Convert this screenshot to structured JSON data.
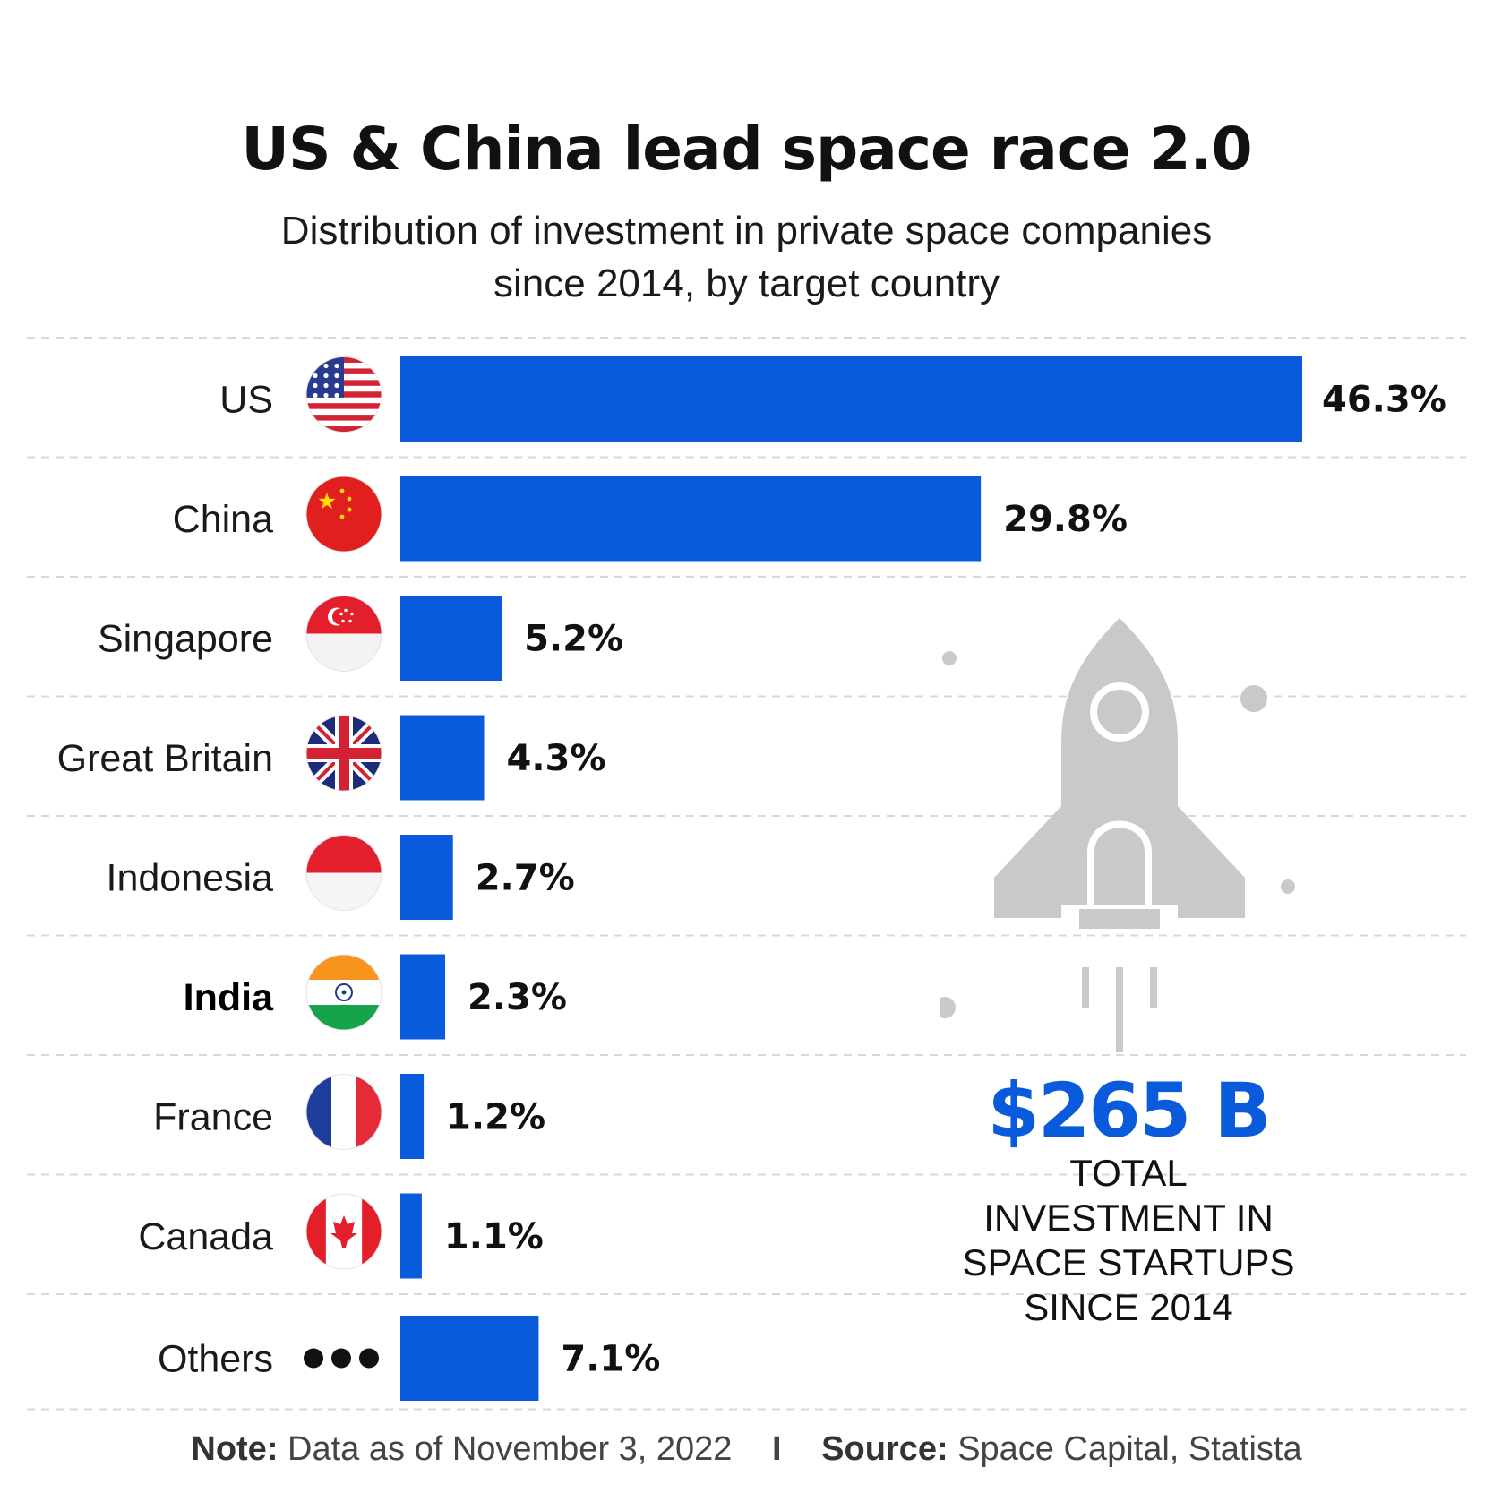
{
  "title": "US & China lead space race 2.0",
  "subtitle_line1": "Distribution of investment in private space companies",
  "subtitle_line2": "since 2014, by target country",
  "total": {
    "amount": "$265 B",
    "caption": "TOTAL INVESTMENT IN SPACE STARTUPS SINCE 2014"
  },
  "footer": {
    "note_label": "Note:",
    "note_text": "Data as of November 3, 2022",
    "separator": "I",
    "source_label": "Source:",
    "source_text": "Space Capital, Statista"
  },
  "colors": {
    "bar": "#0a5bdc",
    "accent": "#0a5bdc",
    "rocket": "#c9c9cc"
  },
  "chart_data": {
    "type": "bar",
    "orientation": "horizontal",
    "categories": [
      "US",
      "China",
      "Singapore",
      "Great Britain",
      "Indonesia",
      "India",
      "France",
      "Canada",
      "Others"
    ],
    "values": [
      46.3,
      29.8,
      5.2,
      4.3,
      2.7,
      2.3,
      1.2,
      1.1,
      7.1
    ],
    "value_labels": [
      "46.3%",
      "29.8%",
      "5.2%",
      "4.3%",
      "2.7%",
      "2.3%",
      "1.2%",
      "1.1%",
      "7.1%"
    ],
    "icons": [
      "us-flag-icon",
      "china-flag-icon",
      "singapore-flag-icon",
      "great-britain-flag-icon",
      "indonesia-flag-icon",
      "india-flag-icon",
      "france-flag-icon",
      "canada-flag-icon",
      "ellipsis-icon"
    ],
    "highlighted": [
      "India"
    ],
    "title": "US & China lead space race 2.0",
    "xlabel": "",
    "ylabel": "",
    "xlim": [
      0,
      46.3
    ],
    "grid": "dashed row separators",
    "legend": "none"
  }
}
